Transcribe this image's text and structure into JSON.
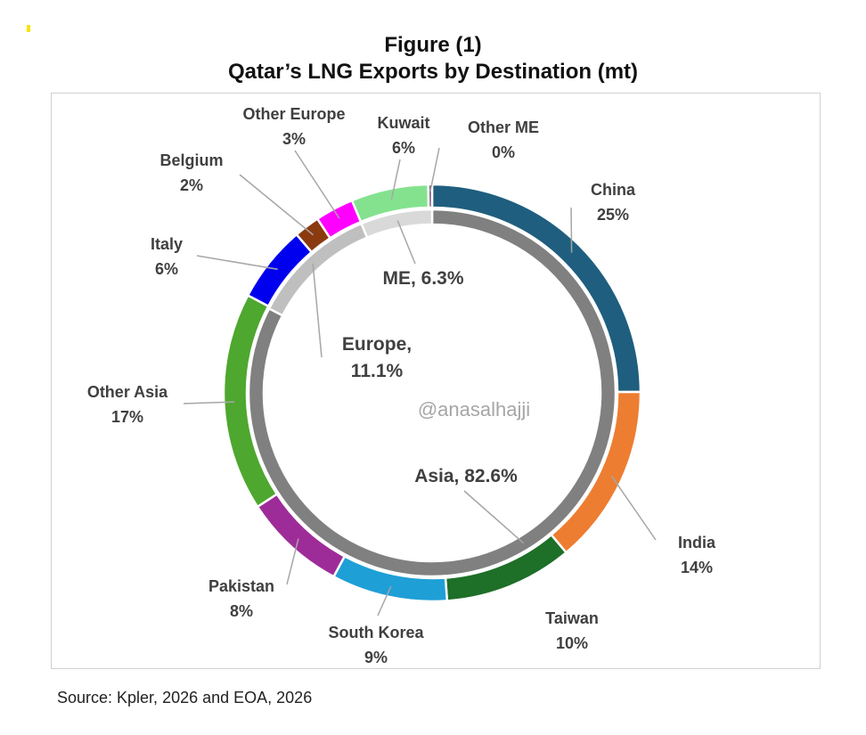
{
  "title": {
    "line1": "Figure (1)",
    "line2": "Qatar’s LNG Exports by Destination (mt)"
  },
  "source": "Source: Kpler, 2026 and EOA, 2026",
  "watermark": "@anasalhajji",
  "chart_data": {
    "type": "pie",
    "subtype": "nested-donut",
    "title": "Qatar’s LNG Exports by Destination (mt)",
    "outer_ring": [
      {
        "name": "China",
        "label": "25%",
        "value": 25,
        "color": "#1f5e7e"
      },
      {
        "name": "India",
        "label": "14%",
        "value": 14,
        "color": "#ed7d31"
      },
      {
        "name": "Taiwan",
        "label": "10%",
        "value": 10,
        "color": "#1e6f28"
      },
      {
        "name": "South Korea",
        "label": "9%",
        "value": 9,
        "color": "#1e9fd6"
      },
      {
        "name": "Pakistan",
        "label": "8%",
        "value": 8,
        "color": "#9e2c98"
      },
      {
        "name": "Other Asia",
        "label": "17%",
        "value": 17,
        "color": "#4ea72e"
      },
      {
        "name": "Italy",
        "label": "6%",
        "value": 6,
        "color": "#0000ee"
      },
      {
        "name": "Belgium",
        "label": "2%",
        "value": 2,
        "color": "#8b3a10"
      },
      {
        "name": "Other Europe",
        "label": "3%",
        "value": 3,
        "color": "#ff00ff"
      },
      {
        "name": "Kuwait",
        "label": "6%",
        "value": 6,
        "color": "#84e28f"
      },
      {
        "name": "Other ME",
        "label": "0%",
        "value": 0.3,
        "color": "#7a5a7a"
      }
    ],
    "inner_ring": [
      {
        "name": "Asia",
        "label": "Asia, 82.6%",
        "value": 82.6,
        "color": "#808080"
      },
      {
        "name": "Europe",
        "label": "Europe, 11.1%",
        "value": 11.1,
        "color": "#bfbfbf"
      },
      {
        "name": "ME",
        "label": "ME, 6.3%",
        "value": 6.3,
        "color": "#d9d9d9"
      }
    ]
  }
}
